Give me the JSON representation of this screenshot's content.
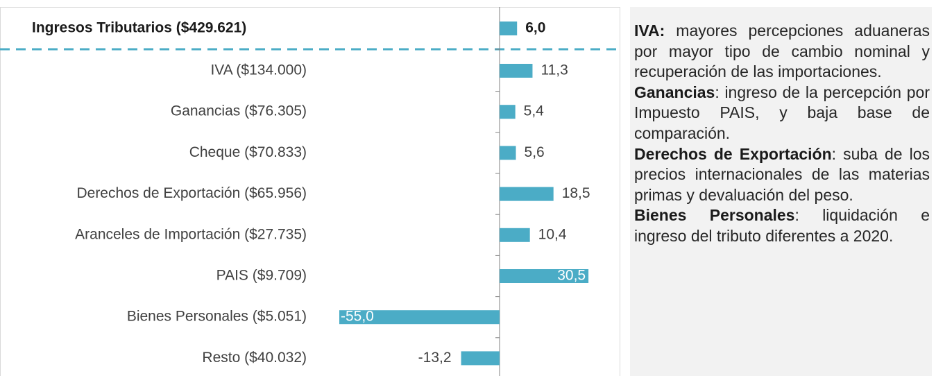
{
  "chart_data": {
    "type": "bar",
    "orientation": "horizontal",
    "categories": [
      "Ingresos Tributarios ($429.621)",
      "IVA ($134.000)",
      "Ganancias ($76.305)",
      "Cheque ($70.833)",
      "Derechos de Exportación ($65.956)",
      "Aranceles de Importación ($27.735)",
      "PAIS ($9.709)",
      "Bienes Personales ($5.051)",
      "Resto ($40.032)"
    ],
    "values": [
      6.0,
      11.3,
      5.4,
      5.6,
      18.5,
      10.4,
      30.5,
      -55.0,
      -13.2
    ],
    "value_labels": [
      "6,0",
      "11,3",
      "5,4",
      "5,6",
      "18,5",
      "10,4",
      "30,5",
      "-55,0",
      "-13,2"
    ],
    "color": "#4bacc6",
    "xlim": [
      -60,
      40
    ]
  },
  "notes": [
    {
      "term": "IVA:",
      "text": " mayores percepciones aduaneras por mayor tipo de cambio nominal y recuperación de las importaciones."
    },
    {
      "term": "Ganancias",
      "text": ": ingreso de la percepción por Impuesto PAIS, y baja base de comparación."
    },
    {
      "term": "Derechos de Exportación",
      "text": ": suba de los precios internacionales de las materias primas y devaluación del peso."
    },
    {
      "term": "Bienes Personales",
      "text": ": liquidación e ingreso del tributo diferentes a 2020."
    }
  ]
}
